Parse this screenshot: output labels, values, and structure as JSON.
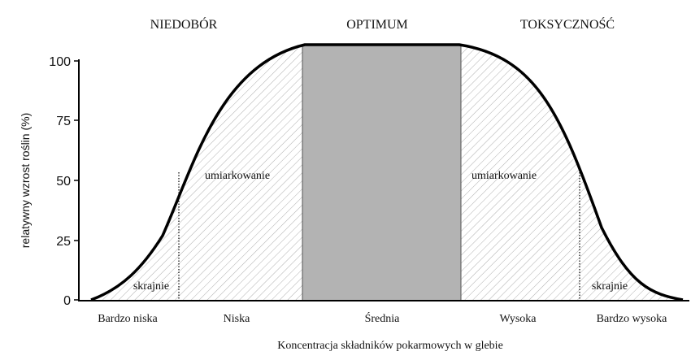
{
  "zones": {
    "left": "NIEDOBÓR",
    "center": "OPTIMUM",
    "right": "TOKSYCZNOŚĆ"
  },
  "y_axis": {
    "title": "relatywny wzrost roślin (%)",
    "ticks": [
      "100",
      "75",
      "50",
      "25",
      "0"
    ]
  },
  "x_axis": {
    "title": "Koncentracja składników pokarmowych w glebie",
    "categories": [
      "Bardzo niska",
      "Niska",
      "Średnia",
      "Wysoka",
      "Bardzo wysoka"
    ]
  },
  "inner_labels": {
    "left_moderate": "umiarkowanie",
    "right_moderate": "umiarkowanie",
    "left_extreme": "skrajnie",
    "right_extreme": "skrajnie"
  },
  "colors": {
    "optimum_fill": "#b3b3b3",
    "curve": "#000000",
    "hatch": "#9a9a9a"
  }
}
